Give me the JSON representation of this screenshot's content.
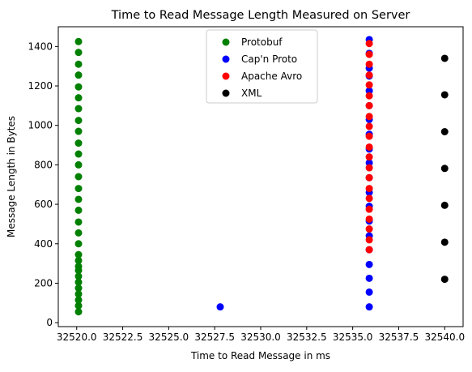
{
  "chart_data": {
    "type": "scatter",
    "title": "Time to Read Message Length Measured on Server",
    "xlabel": "Time to Read Message in ms",
    "ylabel": "Message Length in Bytes",
    "xlim": [
      32519.0,
      32541.0
    ],
    "ylim": [
      -20,
      1500
    ],
    "x_ticks": [
      {
        "value": 32520.0,
        "label": "32520.0"
      },
      {
        "value": 32522.5,
        "label": "32522.5"
      },
      {
        "value": 32525.0,
        "label": "32525.0"
      },
      {
        "value": 32527.5,
        "label": "32527.5"
      },
      {
        "value": 32530.0,
        "label": "32530.0"
      },
      {
        "value": 32532.5,
        "label": "32532.5"
      },
      {
        "value": 32535.0,
        "label": "32535.0"
      },
      {
        "value": 32537.5,
        "label": "32537.5"
      },
      {
        "value": 32540.0,
        "label": "32540.0"
      }
    ],
    "y_ticks": [
      {
        "value": 0,
        "label": "0"
      },
      {
        "value": 200,
        "label": "200"
      },
      {
        "value": 400,
        "label": "400"
      },
      {
        "value": 600,
        "label": "600"
      },
      {
        "value": 800,
        "label": "800"
      },
      {
        "value": 1000,
        "label": "1000"
      },
      {
        "value": 1200,
        "label": "1200"
      },
      {
        "value": 1400,
        "label": "1400"
      }
    ],
    "grid": false,
    "legend_position": "top-center",
    "series": [
      {
        "name": "Protobuf",
        "color": "#008000",
        "points": [
          [
            32520.1,
            55
          ],
          [
            32520.1,
            86
          ],
          [
            32520.1,
            115
          ],
          [
            32520.1,
            145
          ],
          [
            32520.1,
            175
          ],
          [
            32520.1,
            205
          ],
          [
            32520.1,
            235
          ],
          [
            32520.1,
            265
          ],
          [
            32520.1,
            285
          ],
          [
            32520.1,
            315
          ],
          [
            32520.1,
            345
          ],
          [
            32520.1,
            400
          ],
          [
            32520.1,
            455
          ],
          [
            32520.1,
            510
          ],
          [
            32520.1,
            570
          ],
          [
            32520.1,
            625
          ],
          [
            32520.1,
            680
          ],
          [
            32520.1,
            740
          ],
          [
            32520.1,
            800
          ],
          [
            32520.1,
            855
          ],
          [
            32520.1,
            910
          ],
          [
            32520.1,
            970
          ],
          [
            32520.1,
            1025
          ],
          [
            32520.1,
            1085
          ],
          [
            32520.1,
            1140
          ],
          [
            32520.1,
            1195
          ],
          [
            32520.1,
            1255
          ],
          [
            32520.1,
            1310
          ],
          [
            32520.1,
            1370
          ],
          [
            32520.1,
            1425
          ]
        ]
      },
      {
        "name": "Cap'n Proto",
        "color": "#0000ff",
        "points": [
          [
            32527.8,
            80
          ],
          [
            32535.9,
            80
          ],
          [
            32535.9,
            155
          ],
          [
            32535.9,
            225
          ],
          [
            32535.9,
            295
          ],
          [
            32535.9,
            370
          ],
          [
            32535.9,
            440
          ],
          [
            32535.9,
            515
          ],
          [
            32535.9,
            590
          ],
          [
            32535.9,
            660
          ],
          [
            32535.9,
            735
          ],
          [
            32535.9,
            810
          ],
          [
            32535.9,
            880
          ],
          [
            32535.9,
            955
          ],
          [
            32535.9,
            1030
          ],
          [
            32535.9,
            1100
          ],
          [
            32535.9,
            1175
          ],
          [
            32535.9,
            1250
          ],
          [
            32535.9,
            1290
          ],
          [
            32535.9,
            1365
          ],
          [
            32535.9,
            1435
          ]
        ]
      },
      {
        "name": "Apache Avro",
        "color": "#ff0000",
        "points": [
          [
            32535.9,
            370
          ],
          [
            32535.9,
            420
          ],
          [
            32535.9,
            475
          ],
          [
            32535.9,
            525
          ],
          [
            32535.9,
            575
          ],
          [
            32535.9,
            630
          ],
          [
            32535.9,
            680
          ],
          [
            32535.9,
            735
          ],
          [
            32535.9,
            785
          ],
          [
            32535.9,
            840
          ],
          [
            32535.9,
            890
          ],
          [
            32535.9,
            945
          ],
          [
            32535.9,
            995
          ],
          [
            32535.9,
            1045
          ],
          [
            32535.9,
            1100
          ],
          [
            32535.9,
            1150
          ],
          [
            32535.9,
            1205
          ],
          [
            32535.9,
            1255
          ],
          [
            32535.9,
            1310
          ],
          [
            32535.9,
            1360
          ],
          [
            32535.9,
            1415
          ]
        ]
      },
      {
        "name": "XML",
        "color": "#000000",
        "points": [
          [
            32540.0,
            220
          ],
          [
            32540.0,
            408
          ],
          [
            32540.0,
            595
          ],
          [
            32540.0,
            782
          ],
          [
            32540.0,
            968
          ],
          [
            32540.0,
            1155
          ],
          [
            32540.0,
            1340
          ]
        ]
      }
    ]
  }
}
